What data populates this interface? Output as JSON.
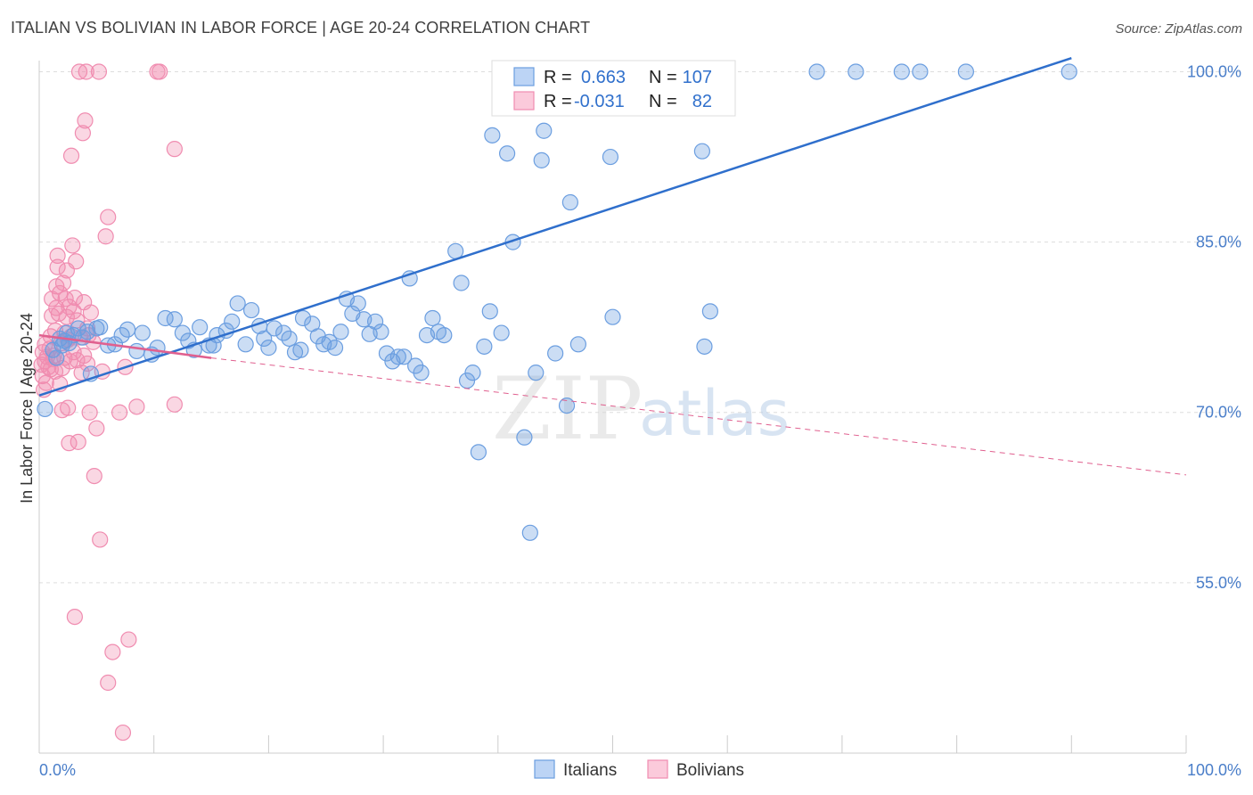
{
  "header": {
    "title": "ITALIAN VS BOLIVIAN IN LABOR FORCE | AGE 20-24 CORRELATION CHART",
    "source": "Source: ZipAtlas.com"
  },
  "watermark": {
    "zip": "ZIP",
    "atlas": "atlas"
  },
  "legend": {
    "r_label": "R =",
    "n_label": "N =",
    "italians": {
      "r": "0.663",
      "n": "107"
    },
    "bolivians": {
      "r": "-0.031",
      "n": "82"
    }
  },
  "bottom_legend": {
    "italians": "Italians",
    "bolivians": "Bolivians"
  },
  "chart_data": {
    "type": "scatter",
    "title": "ITALIAN VS BOLIVIAN IN LABOR FORCE | AGE 20-24 CORRELATION CHART",
    "xlabel": "",
    "ylabel": "In Labor Force | Age 20-24",
    "xlim": [
      0,
      100
    ],
    "ylim": [
      40,
      102
    ],
    "x_tick_labels": [
      "0.0%",
      "100.0%"
    ],
    "y_ticks": [
      {
        "value": 55,
        "label": "55.0%"
      },
      {
        "value": 70,
        "label": "70.0%"
      },
      {
        "value": 85,
        "label": "85.0%"
      },
      {
        "value": 100,
        "label": "100.0%"
      }
    ],
    "colors": {
      "italians": "#6b9ee0",
      "bolivians": "#f08cb0",
      "italians_line": "#2f6fcc",
      "bolivians_line": "#e0608f"
    },
    "series": [
      {
        "name": "Italians",
        "r": 0.663,
        "n": 107,
        "trend": {
          "x0": 0,
          "y0": 71.5,
          "x1": 90,
          "y1": 101.2,
          "style": "solid"
        },
        "points": [
          [
            0.5,
            70.3
          ],
          [
            1.2,
            75.5
          ],
          [
            1.5,
            74.8
          ],
          [
            1.8,
            76.5
          ],
          [
            2.0,
            75.9
          ],
          [
            2.2,
            76.3
          ],
          [
            2.4,
            77.0
          ],
          [
            2.6,
            76.1
          ],
          [
            3.0,
            76.8
          ],
          [
            3.4,
            77.4
          ],
          [
            3.8,
            76.6
          ],
          [
            4.2,
            77.1
          ],
          [
            4.5,
            73.4
          ],
          [
            5.0,
            77.4
          ],
          [
            5.3,
            77.5
          ],
          [
            6.0,
            75.9
          ],
          [
            6.6,
            76.0
          ],
          [
            7.2,
            76.8
          ],
          [
            7.7,
            77.3
          ],
          [
            8.5,
            75.4
          ],
          [
            9.0,
            77.0
          ],
          [
            9.8,
            75.1
          ],
          [
            10.3,
            75.7
          ],
          [
            11.0,
            78.3
          ],
          [
            11.8,
            78.2
          ],
          [
            12.5,
            77.0
          ],
          [
            13.0,
            76.3
          ],
          [
            13.5,
            75.5
          ],
          [
            14.0,
            77.5
          ],
          [
            14.8,
            75.9
          ],
          [
            15.2,
            75.9
          ],
          [
            15.5,
            76.8
          ],
          [
            16.3,
            77.2
          ],
          [
            16.8,
            78.0
          ],
          [
            17.3,
            79.6
          ],
          [
            18.0,
            76.0
          ],
          [
            18.5,
            79.0
          ],
          [
            19.2,
            77.6
          ],
          [
            19.6,
            76.5
          ],
          [
            20.0,
            75.7
          ],
          [
            20.5,
            77.4
          ],
          [
            21.3,
            77.0
          ],
          [
            21.8,
            76.5
          ],
          [
            22.3,
            75.3
          ],
          [
            22.8,
            75.5
          ],
          [
            23.0,
            78.3
          ],
          [
            23.8,
            77.8
          ],
          [
            24.3,
            76.7
          ],
          [
            24.8,
            76.0
          ],
          [
            25.3,
            76.2
          ],
          [
            25.8,
            75.7
          ],
          [
            26.3,
            77.1
          ],
          [
            26.8,
            80.0
          ],
          [
            27.3,
            78.7
          ],
          [
            27.8,
            79.6
          ],
          [
            28.3,
            78.2
          ],
          [
            28.8,
            76.9
          ],
          [
            29.3,
            78.0
          ],
          [
            29.8,
            77.1
          ],
          [
            30.3,
            75.2
          ],
          [
            30.8,
            74.5
          ],
          [
            31.3,
            74.9
          ],
          [
            31.8,
            74.9
          ],
          [
            32.8,
            74.1
          ],
          [
            32.3,
            81.8
          ],
          [
            33.3,
            73.5
          ],
          [
            33.8,
            76.8
          ],
          [
            34.3,
            78.3
          ],
          [
            34.8,
            77.1
          ],
          [
            35.3,
            76.8
          ],
          [
            36.3,
            84.2
          ],
          [
            36.8,
            81.4
          ],
          [
            37.3,
            72.8
          ],
          [
            37.8,
            73.5
          ],
          [
            38.3,
            66.5
          ],
          [
            38.8,
            75.8
          ],
          [
            39.3,
            78.9
          ],
          [
            39.5,
            94.4
          ],
          [
            40.3,
            77.0
          ],
          [
            40.8,
            92.8
          ],
          [
            41.3,
            85.0
          ],
          [
            42.3,
            67.8
          ],
          [
            42.8,
            59.4
          ],
          [
            43.3,
            73.5
          ],
          [
            43.8,
            92.2
          ],
          [
            44.0,
            94.8
          ],
          [
            45.0,
            75.2
          ],
          [
            46.0,
            70.6
          ],
          [
            46.3,
            88.5
          ],
          [
            47.0,
            76.0
          ],
          [
            47.3,
            100.0
          ],
          [
            49.8,
            100.0
          ],
          [
            49.8,
            92.5
          ],
          [
            50.0,
            78.4
          ],
          [
            51.8,
            100.0
          ],
          [
            52.3,
            100.0
          ],
          [
            55.0,
            100.0
          ],
          [
            58.0,
            75.8
          ],
          [
            58.5,
            78.9
          ],
          [
            57.8,
            93.0
          ],
          [
            67.8,
            100.0
          ],
          [
            71.2,
            100.0
          ],
          [
            75.2,
            100.0
          ],
          [
            76.8,
            100.0
          ],
          [
            80.8,
            100.0
          ],
          [
            89.8,
            100.0
          ]
        ]
      },
      {
        "name": "Bolivians",
        "r": -0.031,
        "n": 82,
        "trend_solid": {
          "x0": 0,
          "y0": 76.8,
          "x1": 15,
          "y1": 74.8
        },
        "trend_dashed": {
          "x0": 15,
          "y0": 74.8,
          "x1": 100,
          "y1": 64.5
        },
        "points": [
          [
            0.2,
            74.2
          ],
          [
            0.3,
            73.2
          ],
          [
            0.3,
            75.3
          ],
          [
            0.4,
            72.0
          ],
          [
            0.5,
            74.5
          ],
          [
            0.5,
            76.0
          ],
          [
            0.6,
            72.6
          ],
          [
            0.7,
            74.9
          ],
          [
            0.8,
            74.0
          ],
          [
            0.9,
            75.6
          ],
          [
            1.0,
            73.8
          ],
          [
            1.0,
            76.7
          ],
          [
            1.1,
            78.5
          ],
          [
            1.1,
            80.0
          ],
          [
            1.2,
            74.7
          ],
          [
            1.3,
            75.0
          ],
          [
            1.4,
            73.6
          ],
          [
            1.4,
            77.2
          ],
          [
            1.5,
            79.2
          ],
          [
            1.5,
            81.1
          ],
          [
            1.6,
            82.8
          ],
          [
            1.6,
            83.8
          ],
          [
            1.7,
            78.7
          ],
          [
            1.8,
            80.5
          ],
          [
            1.8,
            72.5
          ],
          [
            1.9,
            76.1
          ],
          [
            2.0,
            70.2
          ],
          [
            2.0,
            73.9
          ],
          [
            2.1,
            81.4
          ],
          [
            2.2,
            74.8
          ],
          [
            2.2,
            77.0
          ],
          [
            2.3,
            80.0
          ],
          [
            2.4,
            78.4
          ],
          [
            2.4,
            82.5
          ],
          [
            2.5,
            76.4
          ],
          [
            2.5,
            70.4
          ],
          [
            2.6,
            79.3
          ],
          [
            2.6,
            67.3
          ],
          [
            2.7,
            74.5
          ],
          [
            2.8,
            92.6
          ],
          [
            2.8,
            76.7
          ],
          [
            2.9,
            84.7
          ],
          [
            3.0,
            78.9
          ],
          [
            3.0,
            75.3
          ],
          [
            3.1,
            80.1
          ],
          [
            3.1,
            52.0
          ],
          [
            3.2,
            83.3
          ],
          [
            3.3,
            74.6
          ],
          [
            3.3,
            78.1
          ],
          [
            3.4,
            67.4
          ],
          [
            3.5,
            100.0
          ],
          [
            3.6,
            76.6
          ],
          [
            3.7,
            73.5
          ],
          [
            3.8,
            94.6
          ],
          [
            3.9,
            75.0
          ],
          [
            3.9,
            79.7
          ],
          [
            4.0,
            95.7
          ],
          [
            4.1,
            100.0
          ],
          [
            4.2,
            77.4
          ],
          [
            4.2,
            74.3
          ],
          [
            4.3,
            76.8
          ],
          [
            4.4,
            70.0
          ],
          [
            4.5,
            78.8
          ],
          [
            4.7,
            76.2
          ],
          [
            4.8,
            64.4
          ],
          [
            5.0,
            68.6
          ],
          [
            5.2,
            100.0
          ],
          [
            5.3,
            58.8
          ],
          [
            5.5,
            73.6
          ],
          [
            5.8,
            85.5
          ],
          [
            6.0,
            87.2
          ],
          [
            6.0,
            46.2
          ],
          [
            6.4,
            48.9
          ],
          [
            7.0,
            70.0
          ],
          [
            7.3,
            41.8
          ],
          [
            7.5,
            74.0
          ],
          [
            7.8,
            50.0
          ],
          [
            8.5,
            70.5
          ],
          [
            10.3,
            100.0
          ],
          [
            10.5,
            100.0
          ],
          [
            11.8,
            93.2
          ],
          [
            11.8,
            70.7
          ]
        ]
      }
    ]
  }
}
